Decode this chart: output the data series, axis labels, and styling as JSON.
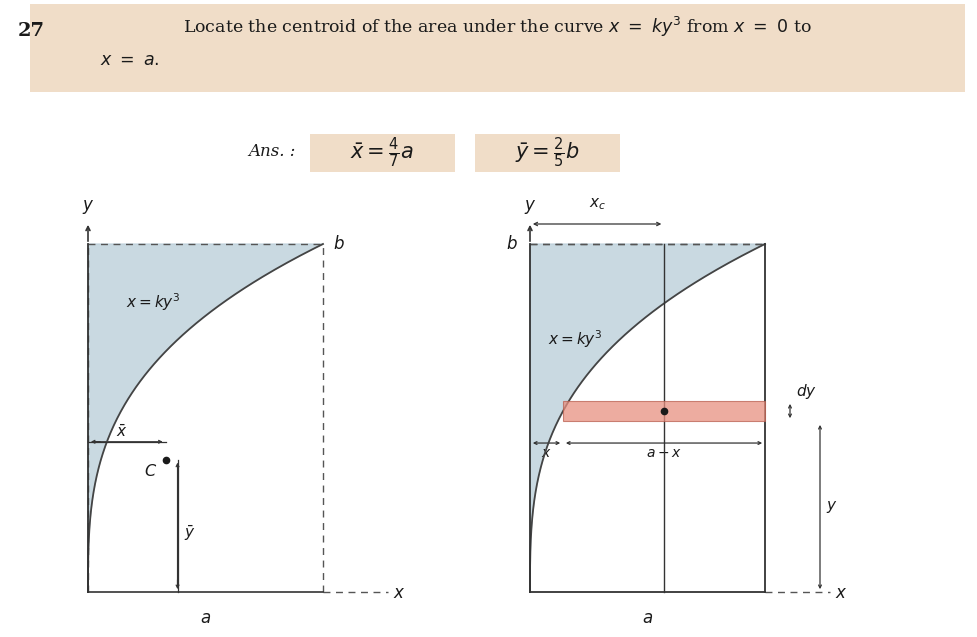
{
  "fig_width": 9.78,
  "fig_height": 6.37,
  "dpi": 100,
  "bg_color": "#ffffff",
  "header_bg": "#f0ddc8",
  "problem_number": "27",
  "header_text_1": "Locate the centroid of the area under the curve ",
  "header_text_2": " from ",
  "header_text_3": " to",
  "header_line2": "$x = a.$",
  "ans_label": "Ans. :",
  "ans_x_text": "$\\bar{x} = \\frac{4}{7}a$",
  "ans_y_text": "$\\bar{y} = \\frac{2}{5}b$",
  "ans_box_color": "#f0ddc8",
  "curve_fill_color": "#b8cdd8",
  "curve_fill_alpha": 0.75,
  "curve_edge_color": "#444444",
  "strip_fill_color": "#e89080",
  "strip_fill_alpha": 0.75,
  "strip_edge_color": "#bb6050",
  "text_color": "#1a1a1a",
  "line_color": "#333333",
  "dash_color": "#555555"
}
